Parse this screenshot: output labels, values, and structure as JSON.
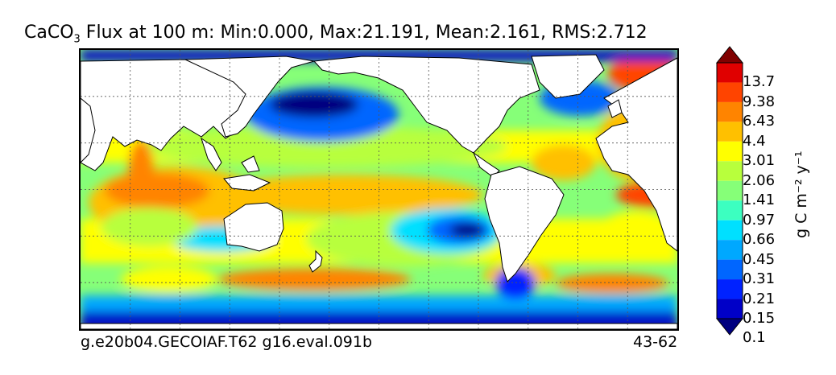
{
  "title": {
    "compound": "CaCO",
    "subscript": "3",
    "text": " Flux at 100 m: Min:0.000, Max:21.191, Mean:2.161, RMS:2.712"
  },
  "footer": {
    "case": "g.e20b04.GECOIAF.T62 g16.eval.091b",
    "years": "43-62"
  },
  "colorbar": {
    "unit_label": "g C m⁻² y⁻¹",
    "levels": [
      "13.7",
      "9.38",
      "6.43",
      "4.4",
      "3.01",
      "2.06",
      "1.41",
      "0.97",
      "0.66",
      "0.45",
      "0.31",
      "0.21",
      "0.15",
      "0.1"
    ],
    "colors": [
      "#000080",
      "#0000c8",
      "#0022ff",
      "#0066ff",
      "#00a8ff",
      "#00e0ff",
      "#3cffc0",
      "#86ff78",
      "#b8ff3c",
      "#ffff00",
      "#ffc000",
      "#ff8400",
      "#ff4400",
      "#e00000",
      "#800000"
    ]
  },
  "chart_data": {
    "type": "heatmap",
    "title": "CaCO3 Flux at 100 m: Min:0.000, Max:21.191, Mean:2.161, RMS:2.712",
    "variable": "CaCO3 Flux at 100 m",
    "statistics": {
      "min": 0.0,
      "max": 21.191,
      "mean": 2.161,
      "rms": 2.712
    },
    "units": "g C m-2 y-1",
    "contour_levels": [
      0.1,
      0.15,
      0.21,
      0.31,
      0.45,
      0.66,
      0.97,
      1.41,
      2.06,
      3.01,
      4.4,
      6.43,
      9.38,
      13.7
    ],
    "grid": true
  }
}
